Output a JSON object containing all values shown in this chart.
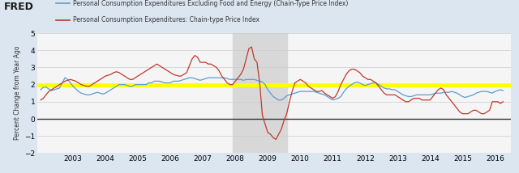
{
  "ylabel": "Percent Change from Year Ago",
  "ylim": [
    -2,
    5
  ],
  "yticks": [
    -2,
    -1,
    0,
    1,
    2,
    3,
    4,
    5
  ],
  "xlim_year": [
    2001.9,
    2016.5
  ],
  "recession_start": 2007.917,
  "recession_end": 2009.583,
  "hline_zero": 0,
  "hline_target": 2.0,
  "hline_zero_color": "#333333",
  "hline_target_color": "#ffff00",
  "fig_bg_color": "#dce6f0",
  "plot_bg_color": "#f5f5f5",
  "recession_color": "#d8d8d8",
  "blue_color": "#5b9bd5",
  "red_color": "#c0392b",
  "legend_labels": [
    "Personal Consumption Expenditures Excluding Food and Energy (Chain-Type Price Index)",
    "Personal Consumption Expenditures: Chain-type Price Index"
  ],
  "xtick_years": [
    2003,
    2004,
    2005,
    2006,
    2007,
    2008,
    2009,
    2010,
    2011,
    2012,
    2013,
    2014,
    2015,
    2016
  ],
  "blue_x": [
    2002.0,
    2002.083,
    2002.167,
    2002.25,
    2002.333,
    2002.417,
    2002.5,
    2002.583,
    2002.667,
    2002.75,
    2002.833,
    2002.917,
    2003.0,
    2003.083,
    2003.167,
    2003.25,
    2003.333,
    2003.417,
    2003.5,
    2003.583,
    2003.667,
    2003.75,
    2003.833,
    2003.917,
    2004.0,
    2004.083,
    2004.167,
    2004.25,
    2004.333,
    2004.417,
    2004.5,
    2004.583,
    2004.667,
    2004.75,
    2004.833,
    2004.917,
    2005.0,
    2005.083,
    2005.167,
    2005.25,
    2005.333,
    2005.417,
    2005.5,
    2005.583,
    2005.667,
    2005.75,
    2005.833,
    2005.917,
    2006.0,
    2006.083,
    2006.167,
    2006.25,
    2006.333,
    2006.417,
    2006.5,
    2006.583,
    2006.667,
    2006.75,
    2006.833,
    2006.917,
    2007.0,
    2007.083,
    2007.167,
    2007.25,
    2007.333,
    2007.417,
    2007.5,
    2007.583,
    2007.667,
    2007.75,
    2007.833,
    2007.917,
    2008.0,
    2008.083,
    2008.167,
    2008.25,
    2008.333,
    2008.417,
    2008.5,
    2008.583,
    2008.667,
    2008.75,
    2008.833,
    2008.917,
    2009.0,
    2009.083,
    2009.167,
    2009.25,
    2009.333,
    2009.417,
    2009.5,
    2009.583,
    2009.667,
    2009.75,
    2009.833,
    2009.917,
    2010.0,
    2010.083,
    2010.167,
    2010.25,
    2010.333,
    2010.417,
    2010.5,
    2010.583,
    2010.667,
    2010.75,
    2010.833,
    2010.917,
    2011.0,
    2011.083,
    2011.167,
    2011.25,
    2011.333,
    2011.417,
    2011.5,
    2011.583,
    2011.667,
    2011.75,
    2011.833,
    2011.917,
    2012.0,
    2012.083,
    2012.167,
    2012.25,
    2012.333,
    2012.417,
    2012.5,
    2012.583,
    2012.667,
    2012.75,
    2012.833,
    2012.917,
    2013.0,
    2013.083,
    2013.167,
    2013.25,
    2013.333,
    2013.417,
    2013.5,
    2013.583,
    2013.667,
    2013.75,
    2013.833,
    2013.917,
    2014.0,
    2014.083,
    2014.167,
    2014.25,
    2014.333,
    2014.417,
    2014.5,
    2014.583,
    2014.667,
    2014.75,
    2014.833,
    2014.917,
    2015.0,
    2015.083,
    2015.167,
    2015.25,
    2015.333,
    2015.417,
    2015.5,
    2015.583,
    2015.667,
    2015.75,
    2015.833,
    2015.917,
    2016.0,
    2016.083,
    2016.167,
    2016.25
  ],
  "blue_y": [
    1.7,
    1.85,
    1.85,
    1.75,
    1.65,
    1.7,
    1.75,
    1.8,
    2.1,
    2.4,
    2.3,
    2.1,
    1.9,
    1.75,
    1.6,
    1.5,
    1.45,
    1.4,
    1.4,
    1.45,
    1.5,
    1.55,
    1.5,
    1.45,
    1.5,
    1.6,
    1.7,
    1.8,
    1.9,
    2.0,
    2.0,
    2.0,
    1.95,
    1.9,
    1.9,
    2.0,
    2.0,
    2.0,
    2.0,
    2.0,
    2.1,
    2.1,
    2.2,
    2.2,
    2.2,
    2.15,
    2.1,
    2.1,
    2.1,
    2.2,
    2.2,
    2.2,
    2.25,
    2.3,
    2.35,
    2.4,
    2.4,
    2.35,
    2.3,
    2.25,
    2.3,
    2.35,
    2.4,
    2.4,
    2.4,
    2.4,
    2.4,
    2.4,
    2.4,
    2.35,
    2.3,
    2.3,
    2.3,
    2.3,
    2.3,
    2.25,
    2.3,
    2.3,
    2.3,
    2.3,
    2.25,
    2.2,
    2.15,
    2.0,
    1.7,
    1.5,
    1.3,
    1.2,
    1.1,
    1.1,
    1.2,
    1.35,
    1.4,
    1.45,
    1.5,
    1.55,
    1.6,
    1.6,
    1.6,
    1.6,
    1.6,
    1.6,
    1.55,
    1.5,
    1.45,
    1.4,
    1.3,
    1.2,
    1.1,
    1.15,
    1.2,
    1.3,
    1.55,
    1.75,
    1.9,
    2.0,
    2.1,
    2.15,
    2.1,
    2.0,
    1.95,
    2.0,
    2.05,
    2.1,
    2.1,
    2.0,
    1.9,
    1.8,
    1.75,
    1.75,
    1.7,
    1.7,
    1.6,
    1.5,
    1.4,
    1.35,
    1.3,
    1.3,
    1.35,
    1.4,
    1.4,
    1.4,
    1.4,
    1.4,
    1.4,
    1.45,
    1.5,
    1.5,
    1.5,
    1.55,
    1.55,
    1.55,
    1.6,
    1.55,
    1.5,
    1.4,
    1.3,
    1.25,
    1.3,
    1.35,
    1.4,
    1.5,
    1.55,
    1.6,
    1.6,
    1.6,
    1.55,
    1.5,
    1.6,
    1.65,
    1.7,
    1.65
  ],
  "red_x": [
    2002.0,
    2002.083,
    2002.167,
    2002.25,
    2002.333,
    2002.417,
    2002.5,
    2002.583,
    2002.667,
    2002.75,
    2002.833,
    2002.917,
    2003.0,
    2003.083,
    2003.167,
    2003.25,
    2003.333,
    2003.417,
    2003.5,
    2003.583,
    2003.667,
    2003.75,
    2003.833,
    2003.917,
    2004.0,
    2004.083,
    2004.167,
    2004.25,
    2004.333,
    2004.417,
    2004.5,
    2004.583,
    2004.667,
    2004.75,
    2004.833,
    2004.917,
    2005.0,
    2005.083,
    2005.167,
    2005.25,
    2005.333,
    2005.417,
    2005.5,
    2005.583,
    2005.667,
    2005.75,
    2005.833,
    2005.917,
    2006.0,
    2006.083,
    2006.167,
    2006.25,
    2006.333,
    2006.417,
    2006.5,
    2006.583,
    2006.667,
    2006.75,
    2006.833,
    2006.917,
    2007.0,
    2007.083,
    2007.167,
    2007.25,
    2007.333,
    2007.417,
    2007.5,
    2007.583,
    2007.667,
    2007.75,
    2007.833,
    2007.917,
    2008.0,
    2008.083,
    2008.167,
    2008.25,
    2008.333,
    2008.417,
    2008.5,
    2008.583,
    2008.667,
    2008.75,
    2008.833,
    2008.917,
    2009.0,
    2009.083,
    2009.167,
    2009.25,
    2009.333,
    2009.417,
    2009.5,
    2009.583,
    2009.667,
    2009.75,
    2009.833,
    2009.917,
    2010.0,
    2010.083,
    2010.167,
    2010.25,
    2010.333,
    2010.417,
    2010.5,
    2010.583,
    2010.667,
    2010.75,
    2010.833,
    2010.917,
    2011.0,
    2011.083,
    2011.167,
    2011.25,
    2011.333,
    2011.417,
    2011.5,
    2011.583,
    2011.667,
    2011.75,
    2011.833,
    2011.917,
    2012.0,
    2012.083,
    2012.167,
    2012.25,
    2012.333,
    2012.417,
    2012.5,
    2012.583,
    2012.667,
    2012.75,
    2012.833,
    2012.917,
    2013.0,
    2013.083,
    2013.167,
    2013.25,
    2013.333,
    2013.417,
    2013.5,
    2013.583,
    2013.667,
    2013.75,
    2013.833,
    2013.917,
    2014.0,
    2014.083,
    2014.167,
    2014.25,
    2014.333,
    2014.417,
    2014.5,
    2014.583,
    2014.667,
    2014.75,
    2014.833,
    2014.917,
    2015.0,
    2015.083,
    2015.167,
    2015.25,
    2015.333,
    2015.417,
    2015.5,
    2015.583,
    2015.667,
    2015.75,
    2015.833,
    2015.917,
    2016.0,
    2016.083,
    2016.167,
    2016.25
  ],
  "red_y": [
    1.1,
    1.2,
    1.4,
    1.6,
    1.7,
    1.8,
    1.9,
    2.0,
    2.1,
    2.2,
    2.25,
    2.3,
    2.25,
    2.2,
    2.1,
    2.0,
    1.95,
    1.9,
    1.9,
    2.0,
    2.1,
    2.2,
    2.3,
    2.4,
    2.5,
    2.55,
    2.6,
    2.7,
    2.75,
    2.7,
    2.6,
    2.5,
    2.4,
    2.3,
    2.3,
    2.4,
    2.5,
    2.6,
    2.7,
    2.8,
    2.9,
    3.0,
    3.1,
    3.2,
    3.1,
    3.0,
    2.9,
    2.8,
    2.7,
    2.6,
    2.55,
    2.5,
    2.5,
    2.6,
    2.7,
    3.1,
    3.5,
    3.7,
    3.6,
    3.3,
    3.3,
    3.3,
    3.2,
    3.2,
    3.1,
    3.0,
    2.8,
    2.5,
    2.3,
    2.1,
    2.0,
    2.0,
    2.2,
    2.4,
    2.6,
    2.9,
    3.5,
    4.1,
    4.2,
    3.5,
    3.3,
    2.1,
    0.2,
    -0.3,
    -0.8,
    -0.9,
    -1.1,
    -1.2,
    -0.9,
    -0.6,
    -0.1,
    0.3,
    1.0,
    1.6,
    2.1,
    2.2,
    2.3,
    2.2,
    2.1,
    1.9,
    1.8,
    1.7,
    1.6,
    1.6,
    1.65,
    1.5,
    1.4,
    1.3,
    1.2,
    1.3,
    1.6,
    2.0,
    2.3,
    2.6,
    2.8,
    2.9,
    2.9,
    2.8,
    2.7,
    2.5,
    2.4,
    2.3,
    2.3,
    2.2,
    2.1,
    1.9,
    1.7,
    1.5,
    1.4,
    1.4,
    1.4,
    1.4,
    1.3,
    1.2,
    1.1,
    1.0,
    1.0,
    1.1,
    1.2,
    1.2,
    1.2,
    1.1,
    1.1,
    1.1,
    1.1,
    1.3,
    1.5,
    1.7,
    1.8,
    1.7,
    1.4,
    1.2,
    1.0,
    0.8,
    0.6,
    0.4,
    0.3,
    0.3,
    0.3,
    0.4,
    0.5,
    0.5,
    0.4,
    0.3,
    0.3,
    0.4,
    0.5,
    1.0,
    1.0,
    1.0,
    0.9,
    1.0
  ]
}
